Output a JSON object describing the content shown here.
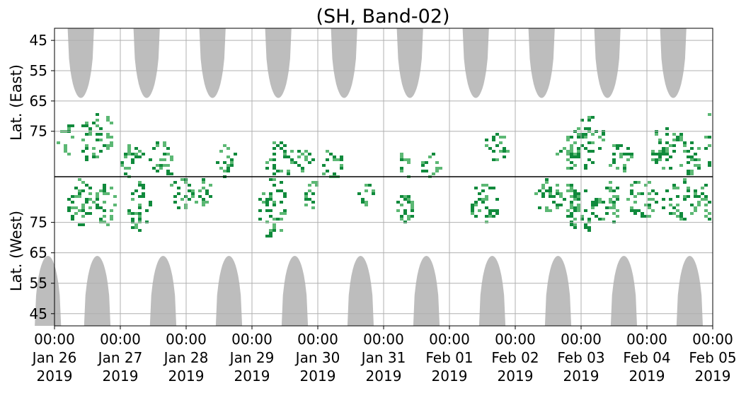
{
  "chart_data": {
    "type": "heatmap",
    "title": "(SH, Band-02)",
    "y_axis_upper": {
      "label": "Lat. (East)",
      "ticks": [
        "45",
        "55",
        "65",
        "75"
      ],
      "tick_values": [
        45,
        55,
        65,
        75
      ],
      "range": [
        90,
        41
      ]
    },
    "y_axis_lower": {
      "label": "Lat. (West)",
      "ticks": [
        "75",
        "65",
        "55",
        "45"
      ],
      "tick_values": [
        75,
        65,
        55,
        45
      ],
      "range": [
        90,
        41
      ]
    },
    "x_axis": {
      "range": [
        "2019-01-26",
        "2019-02-05"
      ],
      "ticks": [
        {
          "time": "00:00",
          "date": "Jan 26",
          "year": "2019"
        },
        {
          "time": "00:00",
          "date": "Jan 27",
          "year": "2019"
        },
        {
          "time": "00:00",
          "date": "Jan 28",
          "year": "2019"
        },
        {
          "time": "00:00",
          "date": "Jan 29",
          "year": "2019"
        },
        {
          "time": "00:00",
          "date": "Jan 30",
          "year": "2019"
        },
        {
          "time": "00:00",
          "date": "Jan 31",
          "year": "2019"
        },
        {
          "time": "00:00",
          "date": "Feb 01",
          "year": "2019"
        },
        {
          "time": "00:00",
          "date": "Feb 02",
          "year": "2019"
        },
        {
          "time": "00:00",
          "date": "Feb 03",
          "year": "2019"
        },
        {
          "time": "00:00",
          "date": "Feb 04",
          "year": "2019"
        },
        {
          "time": "00:00",
          "date": "Feb 05",
          "year": "2019"
        }
      ]
    },
    "grid": true,
    "colors": {
      "no_coverage": "#bdbdbd",
      "strong": "#108a3c",
      "weak": "#5cb874",
      "grid": "#b0b0b0",
      "divider": "#000000"
    },
    "coverage_gap_daily_lat_east": [
      {
        "day": "2019-01-26",
        "half_width_days": 0.2,
        "min_lat": 64
      },
      {
        "day": "2019-01-27",
        "half_width_days": 0.2,
        "min_lat": 64
      },
      {
        "day": "2019-01-28",
        "half_width_days": 0.2,
        "min_lat": 64
      },
      {
        "day": "2019-01-29",
        "half_width_days": 0.2,
        "min_lat": 64
      },
      {
        "day": "2019-01-30",
        "half_width_days": 0.2,
        "min_lat": 64
      },
      {
        "day": "2019-01-31",
        "half_width_days": 0.2,
        "min_lat": 64
      },
      {
        "day": "2019-02-01",
        "half_width_days": 0.2,
        "min_lat": 64
      },
      {
        "day": "2019-02-02",
        "half_width_days": 0.2,
        "min_lat": 64
      },
      {
        "day": "2019-02-03",
        "half_width_days": 0.2,
        "min_lat": 64
      },
      {
        "day": "2019-02-04",
        "half_width_days": 0.2,
        "min_lat": 64
      }
    ],
    "coverage_gap_daily_lat_west": [
      {
        "day": "2019-01-26",
        "half_width_days": 0.2,
        "min_lat": 64
      },
      {
        "day": "2019-01-27",
        "half_width_days": 0.2,
        "min_lat": 64
      },
      {
        "day": "2019-01-28",
        "half_width_days": 0.2,
        "min_lat": 64
      },
      {
        "day": "2019-01-29",
        "half_width_days": 0.2,
        "min_lat": 64
      },
      {
        "day": "2019-01-30",
        "half_width_days": 0.2,
        "min_lat": 64
      },
      {
        "day": "2019-01-31",
        "half_width_days": 0.2,
        "min_lat": 64
      },
      {
        "day": "2019-02-01",
        "half_width_days": 0.2,
        "min_lat": 64
      },
      {
        "day": "2019-02-02",
        "half_width_days": 0.2,
        "min_lat": 64
      },
      {
        "day": "2019-02-03",
        "half_width_days": 0.2,
        "min_lat": 64
      },
      {
        "day": "2019-02-04",
        "half_width_days": 0.2,
        "min_lat": 64
      }
    ],
    "scatter_blobs": [
      {
        "day": 0.15,
        "hemi": "E",
        "lat": 77,
        "w": 0.12,
        "h": 6,
        "s": 0.3
      },
      {
        "day": 0.55,
        "hemi": "E",
        "lat": 77,
        "w": 0.18,
        "h": 8,
        "s": 0.55
      },
      {
        "day": 0.8,
        "hemi": "E",
        "lat": 75,
        "w": 0.1,
        "h": 6,
        "s": 0.3
      },
      {
        "day": 1.15,
        "hemi": "E",
        "lat": 85,
        "w": 0.2,
        "h": 6,
        "s": 0.5
      },
      {
        "day": 1.6,
        "hemi": "E",
        "lat": 84,
        "w": 0.2,
        "h": 7,
        "s": 0.6
      },
      {
        "day": 2.6,
        "hemi": "E",
        "lat": 84,
        "w": 0.14,
        "h": 6,
        "s": 0.35
      },
      {
        "day": 3.4,
        "hemi": "E",
        "lat": 84,
        "w": 0.22,
        "h": 6,
        "s": 0.6
      },
      {
        "day": 3.8,
        "hemi": "E",
        "lat": 84,
        "w": 0.16,
        "h": 4,
        "s": 0.4
      },
      {
        "day": 4.2,
        "hemi": "E",
        "lat": 86,
        "w": 0.16,
        "h": 6,
        "s": 0.5
      },
      {
        "day": 5.3,
        "hemi": "E",
        "lat": 86,
        "w": 0.1,
        "h": 4,
        "s": 0.3
      },
      {
        "day": 5.7,
        "hemi": "E",
        "lat": 86,
        "w": 0.16,
        "h": 4,
        "s": 0.4
      },
      {
        "day": 6.7,
        "hemi": "E",
        "lat": 80,
        "w": 0.18,
        "h": 5,
        "s": 0.5
      },
      {
        "day": 7.8,
        "hemi": "E",
        "lat": 82,
        "w": 0.18,
        "h": 6,
        "s": 0.45
      },
      {
        "day": 8.1,
        "hemi": "E",
        "lat": 78,
        "w": 0.22,
        "h": 9,
        "s": 0.7
      },
      {
        "day": 8.6,
        "hemi": "E",
        "lat": 83,
        "w": 0.2,
        "h": 5,
        "s": 0.55
      },
      {
        "day": 9.3,
        "hemi": "E",
        "lat": 80,
        "w": 0.28,
        "h": 7,
        "s": 0.6
      },
      {
        "day": 9.65,
        "hemi": "E",
        "lat": 83,
        "w": 0.16,
        "h": 6,
        "s": 0.45
      },
      {
        "day": 9.95,
        "hemi": "E",
        "lat": 77,
        "w": 0.14,
        "h": 10,
        "s": 0.75
      },
      {
        "day": 0.35,
        "hemi": "W",
        "lat": 82,
        "w": 0.22,
        "h": 8,
        "s": 0.5
      },
      {
        "day": 0.75,
        "hemi": "W",
        "lat": 81,
        "w": 0.18,
        "h": 7,
        "s": 0.55
      },
      {
        "day": 1.25,
        "hemi": "W",
        "lat": 81,
        "w": 0.18,
        "h": 9,
        "s": 0.5
      },
      {
        "day": 1.9,
        "hemi": "W",
        "lat": 85,
        "w": 0.18,
        "h": 5,
        "s": 0.6
      },
      {
        "day": 2.2,
        "hemi": "W",
        "lat": 85,
        "w": 0.16,
        "h": 5,
        "s": 0.45
      },
      {
        "day": 3.3,
        "hemi": "W",
        "lat": 80,
        "w": 0.2,
        "h": 10,
        "s": 0.7
      },
      {
        "day": 3.9,
        "hemi": "W",
        "lat": 84,
        "w": 0.12,
        "h": 5,
        "s": 0.4
      },
      {
        "day": 4.7,
        "hemi": "W",
        "lat": 85,
        "w": 0.12,
        "h": 4,
        "s": 0.35
      },
      {
        "day": 5.3,
        "hemi": "W",
        "lat": 82,
        "w": 0.14,
        "h": 7,
        "s": 0.6
      },
      {
        "day": 6.5,
        "hemi": "W",
        "lat": 82,
        "w": 0.22,
        "h": 7,
        "s": 0.7
      },
      {
        "day": 7.5,
        "hemi": "W",
        "lat": 84,
        "w": 0.22,
        "h": 6,
        "s": 0.5
      },
      {
        "day": 7.8,
        "hemi": "W",
        "lat": 82,
        "w": 0.18,
        "h": 6,
        "s": 0.45
      },
      {
        "day": 8.0,
        "hemi": "W",
        "lat": 79,
        "w": 0.2,
        "h": 8,
        "s": 0.7
      },
      {
        "day": 8.4,
        "hemi": "W",
        "lat": 82,
        "w": 0.18,
        "h": 8,
        "s": 0.5
      },
      {
        "day": 8.9,
        "hemi": "W",
        "lat": 83,
        "w": 0.24,
        "h": 7,
        "s": 0.6
      },
      {
        "day": 9.5,
        "hemi": "W",
        "lat": 83,
        "w": 0.28,
        "h": 7,
        "s": 0.65
      },
      {
        "day": 9.9,
        "hemi": "W",
        "lat": 82,
        "w": 0.14,
        "h": 8,
        "s": 0.55
      }
    ]
  }
}
